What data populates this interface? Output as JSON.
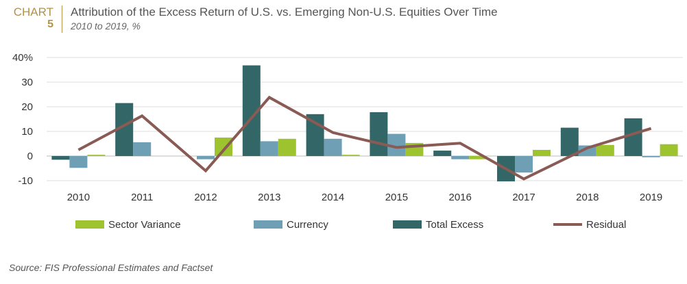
{
  "header": {
    "chart_label": "CHART",
    "chart_number": "5",
    "title": "Attribution of the Excess Return of U.S. vs. Emerging Non-U.S. Equities Over Time",
    "subtitle": "2010 to 2019, %"
  },
  "source": "Source: FIS Professional Estimates and Factset",
  "colors": {
    "total_excess": "#336666",
    "currency": "#6f9fb5",
    "sector_variance": "#9dc42e",
    "residual": "#8a5a55",
    "grid": "#dddddd",
    "accent": "#b3924a"
  },
  "chart_data": {
    "type": "bar",
    "title": "Attribution of the Excess Return of U.S. vs. Emerging Non-U.S. Equities Over Time",
    "subtitle": "2010 to 2019, %",
    "categories": [
      "2010",
      "2011",
      "2012",
      "2013",
      "2014",
      "2015",
      "2016",
      "2017",
      "2018",
      "2019"
    ],
    "series": [
      {
        "name": "Total Excess",
        "type": "bar",
        "values": [
          -1.5,
          21.5,
          0,
          36.8,
          17,
          17.8,
          2.2,
          -10.3,
          11.5,
          15.3
        ]
      },
      {
        "name": "Currency",
        "type": "bar",
        "values": [
          -4.8,
          5.6,
          -1.3,
          6,
          7,
          9,
          -1.3,
          -6.7,
          4.3,
          -0.5
        ]
      },
      {
        "name": "Sector Variance",
        "type": "bar",
        "values": [
          0.5,
          0,
          7.5,
          7,
          0.5,
          5.3,
          -1.3,
          2.5,
          4.5,
          4.8
        ]
      },
      {
        "name": "Residual",
        "type": "line",
        "values": [
          2.5,
          16.3,
          -6,
          23.8,
          9.5,
          3.5,
          5.2,
          -9.3,
          3.3,
          11.2
        ]
      }
    ],
    "xlabel": "",
    "ylabel": "",
    "ylim": [
      -10,
      40
    ],
    "yticks": [
      "40%",
      "30",
      "20",
      "10",
      "0",
      "-10"
    ],
    "ytick_values": [
      40,
      30,
      20,
      10,
      0,
      -10
    ],
    "legend": {
      "placement": "bottom",
      "order": [
        "Sector Variance",
        "Currency",
        "Total Excess",
        "Residual"
      ]
    },
    "grid": true
  }
}
